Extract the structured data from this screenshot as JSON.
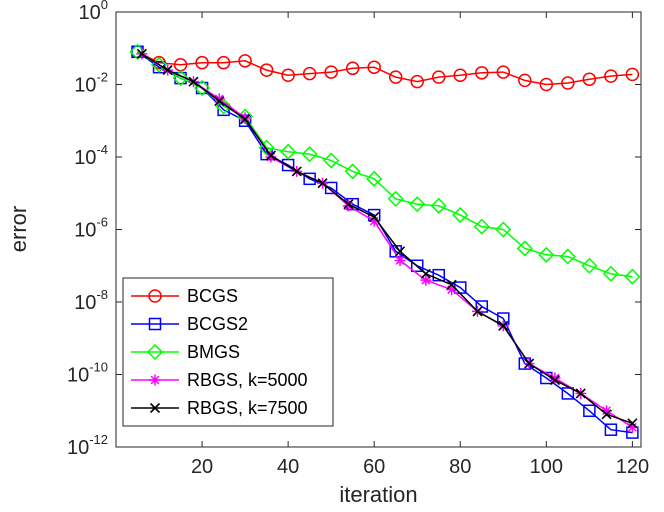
{
  "chart_data": {
    "type": "line",
    "xlabel": "iteration",
    "ylabel": "error",
    "xlim": [
      0,
      122
    ],
    "ylim_log10": [
      -12,
      0
    ],
    "yscale": "log",
    "x_ticks": [
      20,
      40,
      60,
      80,
      100,
      120
    ],
    "x_tick_labels": [
      "20",
      "40",
      "60",
      "80",
      "100",
      "120"
    ],
    "y_ticks_log10": [
      -12,
      -10,
      -8,
      -6,
      -4,
      -2,
      0
    ],
    "y_tick_labels": [
      {
        "base": "10",
        "exp": "-12"
      },
      {
        "base": "10",
        "exp": "-10"
      },
      {
        "base": "10",
        "exp": "-8"
      },
      {
        "base": "10",
        "exp": "-6"
      },
      {
        "base": "10",
        "exp": "-4"
      },
      {
        "base": "10",
        "exp": "-2"
      },
      {
        "base": "10",
        "exp": "0"
      }
    ],
    "legend_position": "bottom-left",
    "series": [
      {
        "name": "BCGS",
        "color": "#ff0000",
        "marker": "circle",
        "x": [
          5,
          10,
          15,
          20,
          25,
          30,
          35,
          40,
          45,
          50,
          55,
          60,
          65,
          70,
          75,
          80,
          85,
          90,
          95,
          100,
          105,
          110,
          115,
          120
        ],
        "y": [
          0.08,
          0.04,
          0.035,
          0.04,
          0.04,
          0.045,
          0.025,
          0.018,
          0.02,
          0.022,
          0.028,
          0.03,
          0.016,
          0.012,
          0.016,
          0.018,
          0.021,
          0.022,
          0.013,
          0.01,
          0.011,
          0.014,
          0.017,
          0.019
        ]
      },
      {
        "name": "BCGS2",
        "color": "#0000ff",
        "marker": "square",
        "x": [
          5,
          10,
          15,
          20,
          25,
          30,
          35,
          40,
          45,
          50,
          55,
          60,
          65,
          70,
          75,
          80,
          85,
          90,
          95,
          100,
          105,
          110,
          115,
          120
        ],
        "y": [
          0.08,
          0.03,
          0.015,
          0.008,
          0.002,
          0.001,
          0.00012,
          6e-05,
          2.5e-05,
          1.4e-05,
          5e-06,
          2.5e-06,
          2.5e-07,
          1e-07,
          5.5e-08,
          2.5e-08,
          7.5e-09,
          3.5e-09,
          2e-10,
          8e-11,
          3e-11,
          1e-11,
          3e-12,
          2.5e-12
        ]
      },
      {
        "name": "BMGS",
        "color": "#00ff00",
        "marker": "diamond",
        "x": [
          5,
          10,
          15,
          20,
          25,
          30,
          35,
          40,
          45,
          50,
          55,
          60,
          65,
          70,
          75,
          80,
          85,
          90,
          95,
          100,
          105,
          110,
          115,
          120
        ],
        "y": [
          0.08,
          0.035,
          0.015,
          0.008,
          0.0025,
          0.0013,
          0.00018,
          0.00014,
          0.00012,
          8e-05,
          4e-05,
          2.5e-05,
          7e-06,
          5e-06,
          4.5e-06,
          2.5e-06,
          1.2e-06,
          1e-06,
          3e-07,
          2e-07,
          1.8e-07,
          1e-07,
          6e-08,
          5e-08
        ]
      },
      {
        "name": "RBGS, k=5000",
        "color": "#ff00ff",
        "marker": "asterisk",
        "x": [
          6,
          12,
          18,
          24,
          30,
          36,
          42,
          48,
          54,
          60,
          66,
          72,
          78,
          84,
          90,
          96,
          102,
          108,
          114,
          120
        ],
        "y": [
          0.07,
          0.025,
          0.012,
          0.004,
          0.0012,
          0.0001,
          4e-05,
          1.9e-05,
          4.5e-06,
          1.7e-06,
          1.4e-07,
          4e-08,
          2.2e-08,
          5.5e-09,
          2.2e-09,
          2e-10,
          8e-11,
          3e-11,
          1e-11,
          3.5e-12
        ]
      },
      {
        "name": "RBGS, k=7500",
        "color": "#000000",
        "marker": "x",
        "x": [
          6,
          12,
          18,
          24,
          30,
          36,
          42,
          48,
          54,
          60,
          66,
          72,
          78,
          84,
          90,
          96,
          102,
          108,
          114,
          120
        ],
        "y": [
          0.07,
          0.025,
          0.012,
          0.0035,
          0.0011,
          0.00011,
          4e-05,
          1.9e-05,
          5e-06,
          2.2e-06,
          2.5e-07,
          6e-08,
          3e-08,
          5.5e-09,
          2.2e-09,
          2e-10,
          7e-11,
          3e-11,
          8e-12,
          4.5e-12
        ]
      }
    ]
  }
}
